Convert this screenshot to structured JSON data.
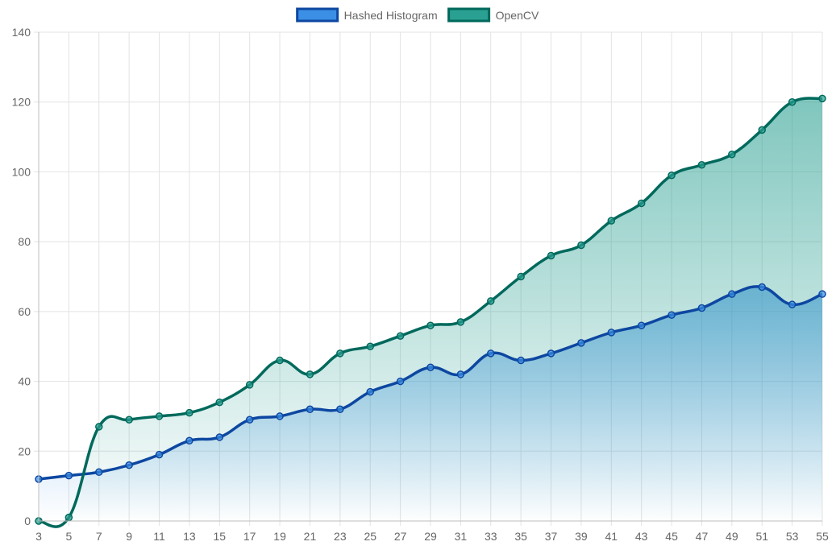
{
  "chart_data": {
    "type": "area",
    "title": "",
    "xlabel": "",
    "ylabel": "",
    "x": [
      3,
      5,
      7,
      9,
      11,
      13,
      15,
      17,
      19,
      21,
      23,
      25,
      27,
      29,
      31,
      33,
      35,
      37,
      39,
      41,
      43,
      45,
      47,
      49,
      51,
      53,
      55
    ],
    "ylim": [
      0,
      140
    ],
    "y_ticks": [
      0,
      20,
      40,
      60,
      80,
      100,
      120,
      140
    ],
    "grid": true,
    "legend_position": "top",
    "series": [
      {
        "name": "Hashed Histogram",
        "line_color": "#0d47a1",
        "fill_color": "#3b8fe4",
        "values": [
          12,
          13,
          14,
          16,
          19,
          23,
          24,
          29,
          30,
          32,
          32,
          37,
          40,
          44,
          42,
          48,
          46,
          48,
          51,
          54,
          56,
          59,
          61,
          65,
          67,
          62,
          65
        ]
      },
      {
        "name": "OpenCV",
        "line_color": "#00695c",
        "fill_color": "#2aa092",
        "values": [
          0,
          1,
          27,
          29,
          30,
          31,
          34,
          39,
          46,
          42,
          48,
          50,
          53,
          56,
          57,
          63,
          70,
          76,
          79,
          86,
          91,
          99,
          102,
          105,
          112,
          120,
          121
        ]
      }
    ]
  }
}
